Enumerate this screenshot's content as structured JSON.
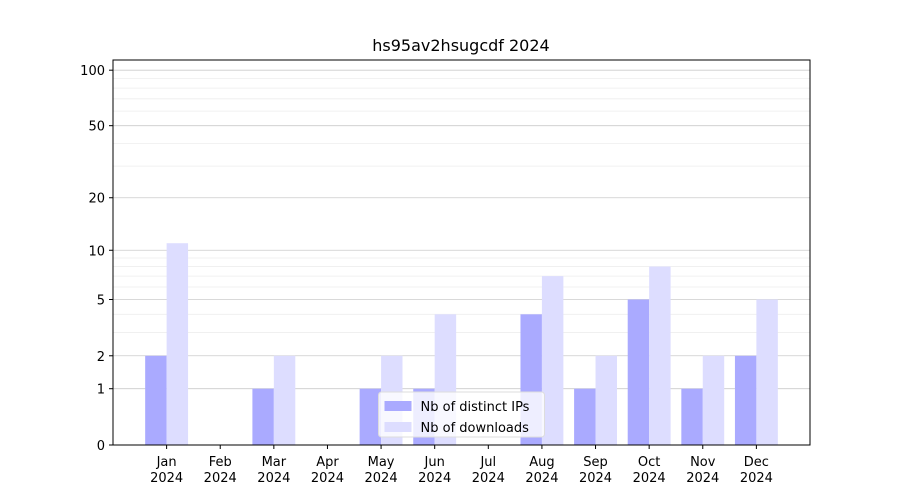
{
  "chart_data": {
    "type": "bar",
    "title": "hs95av2hsugcdf 2024",
    "categories": [
      "Jan 2024",
      "Feb 2024",
      "Mar 2024",
      "Apr 2024",
      "May 2024",
      "Jun 2024",
      "Jul 2024",
      "Aug 2024",
      "Sep 2024",
      "Oct 2024",
      "Nov 2024",
      "Dec 2024"
    ],
    "series": [
      {
        "name": "Nb of distinct IPs",
        "color": "#aaaaff",
        "values": [
          2,
          0,
          1,
          0,
          1,
          1,
          0,
          4,
          1,
          5,
          1,
          2
        ]
      },
      {
        "name": "Nb of downloads",
        "color": "#ddddff",
        "values": [
          11,
          0,
          2,
          0,
          2,
          4,
          0,
          7,
          2,
          8,
          2,
          5
        ]
      }
    ],
    "yscale": "log1p",
    "ylim": [
      0,
      113.5
    ],
    "yticks": [
      0,
      1,
      2,
      5,
      10,
      20,
      50,
      100
    ],
    "yminorticks": [
      3,
      4,
      6,
      7,
      8,
      9,
      30,
      40,
      60,
      70,
      80,
      90
    ],
    "grid": true,
    "legend": "lower center"
  }
}
